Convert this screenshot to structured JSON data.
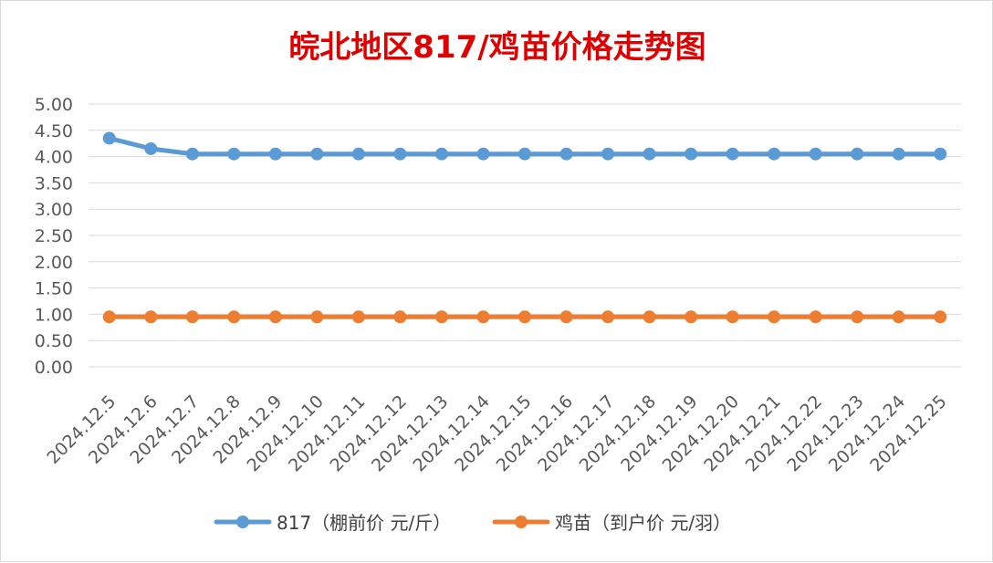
{
  "chart_data": {
    "type": "line",
    "title": "皖北地区817/鸡苗价格走势图",
    "title_color": "#e00000",
    "categories": [
      "2024.12.5",
      "2024.12.6",
      "2024.12.7",
      "2024.12.8",
      "2024.12.9",
      "2024.12.10",
      "2024.12.11",
      "2024.12.12",
      "2024.12.13",
      "2024.12.14",
      "2024.12.15",
      "2024.12.16",
      "2024.12.17",
      "2024.12.18",
      "2024.12.19",
      "2024.12.20",
      "2024.12.21",
      "2024.12.22",
      "2024.12.23",
      "2024.12.24",
      "2024.12.25"
    ],
    "series": [
      {
        "name": "817（棚前价 元/斤）",
        "color": "#5b9bd5",
        "values": [
          4.35,
          4.15,
          4.05,
          4.05,
          4.05,
          4.05,
          4.05,
          4.05,
          4.05,
          4.05,
          4.05,
          4.05,
          4.05,
          4.05,
          4.05,
          4.05,
          4.05,
          4.05,
          4.05,
          4.05,
          4.05
        ]
      },
      {
        "name": "鸡苗（到户价 元/羽）",
        "color": "#ed7d31",
        "values": [
          0.95,
          0.95,
          0.95,
          0.95,
          0.95,
          0.95,
          0.95,
          0.95,
          0.95,
          0.95,
          0.95,
          0.95,
          0.95,
          0.95,
          0.95,
          0.95,
          0.95,
          0.95,
          0.95,
          0.95,
          0.95
        ]
      }
    ],
    "ylim": [
      0,
      5
    ],
    "yticks": [
      "0.00",
      "0.50",
      "1.00",
      "1.50",
      "2.00",
      "2.50",
      "3.00",
      "3.50",
      "4.00",
      "4.50",
      "5.00"
    ],
    "grid": true,
    "legend_position": "bottom"
  }
}
